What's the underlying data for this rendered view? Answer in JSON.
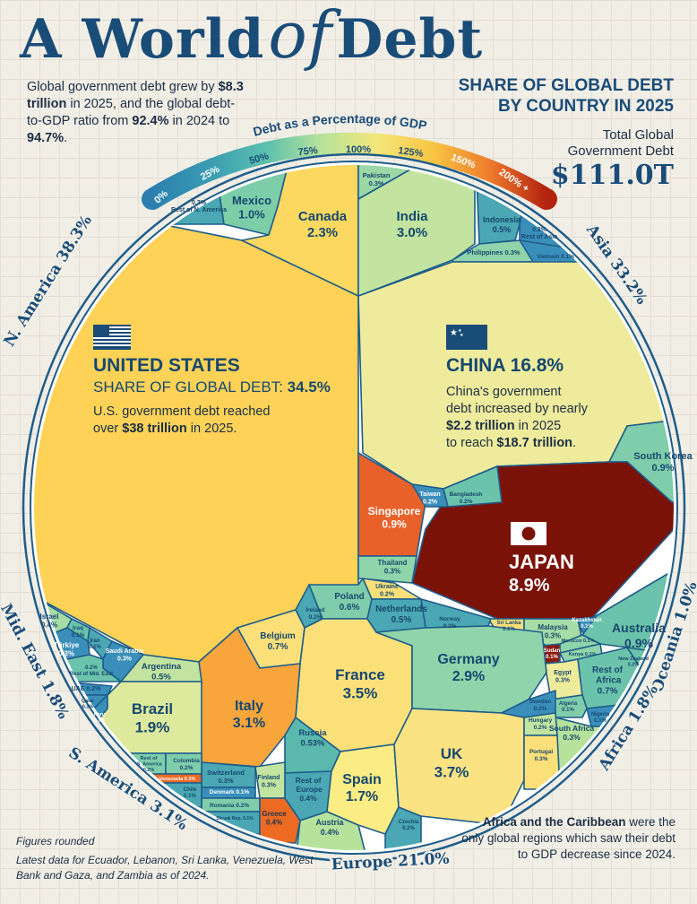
{
  "header": {
    "title_a": "A World",
    "title_of": "of",
    "title_b": "Debt",
    "intro": [
      "Global government debt grew by ",
      "$8.3 trillion",
      " in 2025, and the global debt-to-GDP ratio from ",
      "92.4%",
      " in 2024 to ",
      "94.7%",
      "."
    ],
    "right_title_1": "SHARE OF GLOBAL DEBT",
    "right_title_2": "BY COUNTRY IN 2025",
    "total_label_1": "Total Global",
    "total_label_2": "Government Debt",
    "total_value": "$111.0T"
  },
  "legend": {
    "title": "Debt as a Percentage of GDP",
    "ticks": [
      "0%",
      "25%",
      "50%",
      "75%",
      "100%",
      "125%",
      "150%",
      "200% +"
    ],
    "colors": [
      "#2b7fae",
      "#3a9bb2",
      "#5bbfae",
      "#b6e29c",
      "#f3e77a",
      "#f9c443",
      "#ee7a2c",
      "#b2220f"
    ]
  },
  "highlights": {
    "us": {
      "name": "UNITED STATES",
      "share_label": "SHARE OF GLOBAL DEBT:",
      "share": "34.5%",
      "note_1": "U.S. government debt reached",
      "note_2a": "over ",
      "note_2b": "$38 trillion",
      "note_2c": " in 2025."
    },
    "china": {
      "name": "CHINA",
      "share": "16.8%",
      "note_1": "China's government",
      "note_2": "debt increased by nearly",
      "note_3a": "$2.2 trillion",
      "note_3b": " in 2025",
      "note_4a": "to reach ",
      "note_4b": "$18.7 trillion",
      "note_4c": "."
    },
    "japan": {
      "name": "JAPAN",
      "share": "8.9%"
    }
  },
  "footer": {
    "rounded": "Figures rounded",
    "latest": "Latest data for Ecuador, Lebanon, Sri Lanka, Venezuela, West Bank and Gaza, and Zambia as of 2024.",
    "africa": [
      "Africa",
      " and ",
      "the Caribbean",
      " were the only global regions which saw their debt to GDP decrease since 2024."
    ]
  },
  "chart_data": {
    "type": "voronoi-treemap",
    "title": "Share of Global Debt by Country in 2025",
    "unit": "% of global government debt",
    "color_encoding": "Debt as a Percentage of GDP",
    "regions": [
      {
        "name": "N. America",
        "share": "38.3%"
      },
      {
        "name": "Asia",
        "share": "33.2%"
      },
      {
        "name": "Oceania",
        "share": "1.0%"
      },
      {
        "name": "Africa",
        "share": "1.8%"
      },
      {
        "name": "Europe",
        "share": "21.0%"
      },
      {
        "name": "S. America",
        "share": "3.1%"
      },
      {
        "name": "Mid. East",
        "share": "1.8%"
      }
    ],
    "cells": [
      {
        "name": "United States",
        "value": "34.5%",
        "region": "N. America",
        "color": "#fdd257"
      },
      {
        "name": "Rest of N. America",
        "value": "0.3%",
        "region": "N. America",
        "color": "#4aa7b3"
      },
      {
        "name": "Mexico",
        "value": "1.0%",
        "region": "N. America",
        "color": "#7dcda9"
      },
      {
        "name": "Canada",
        "value": "2.3%",
        "region": "N. America",
        "color": "#fcd860"
      },
      {
        "name": "Pakistan",
        "value": "0.3%",
        "region": "Asia",
        "color": "#9ad8a6"
      },
      {
        "name": "India",
        "value": "3.0%",
        "region": "Asia",
        "color": "#c2e4a0"
      },
      {
        "name": "Indonesia",
        "value": "0.5%",
        "region": "Asia",
        "color": "#4aa7b3"
      },
      {
        "name": "Rest of Asia",
        "value": "0.2%",
        "region": "Asia",
        "color": "#3a8fba"
      },
      {
        "name": "Philippines",
        "value": "0.3%",
        "region": "Asia",
        "color": "#8fd4aa"
      },
      {
        "name": "Vietnam",
        "value": "0.1%",
        "region": "Asia",
        "color": "#3a8fba"
      },
      {
        "name": "China",
        "value": "16.8%",
        "region": "Asia",
        "color": "#eeeb9c"
      },
      {
        "name": "South Korea",
        "value": "0.9%",
        "region": "Asia",
        "color": "#7fcdaa"
      },
      {
        "name": "Japan",
        "value": "8.9%",
        "region": "Asia",
        "color": "#7b1208"
      },
      {
        "name": "Singapore",
        "value": "0.9%",
        "region": "Asia",
        "color": "#e8612a"
      },
      {
        "name": "Taiwan",
        "value": "0.2%",
        "region": "Asia",
        "color": "#3a8fba"
      },
      {
        "name": "Bangladesh",
        "value": "0.2%",
        "region": "Asia",
        "color": "#6cc3ab"
      },
      {
        "name": "Thailand",
        "value": "0.3%",
        "region": "Asia",
        "color": "#8fd4aa"
      },
      {
        "name": "Sri Lanka",
        "value": "0.1%",
        "region": "Asia",
        "color": "#fbe07a"
      },
      {
        "name": "Malaysia",
        "value": "0.3%",
        "region": "Asia",
        "color": "#a6dca5"
      },
      {
        "name": "Kazakhstan",
        "value": "0.1%",
        "region": "Asia",
        "color": "#3a8fba"
      },
      {
        "name": "Australia",
        "value": "0.9%",
        "region": "Oceania",
        "color": "#6cc3ab"
      },
      {
        "name": "New Zealand",
        "value": "0.2%",
        "region": "Oceania",
        "color": "#6cc3ab"
      },
      {
        "name": "Sudan",
        "value": "0.1%",
        "region": "Africa",
        "color": "#8a1a0c"
      },
      {
        "name": "Morocco",
        "value": "0.1%",
        "region": "Africa",
        "color": "#8fd4aa"
      },
      {
        "name": "Kenya",
        "value": "0.1%",
        "region": "Africa",
        "color": "#8fd4aa"
      },
      {
        "name": "Egypt",
        "value": "0.3%",
        "region": "Africa",
        "color": "#eeeb9c"
      },
      {
        "name": "Rest of Africa",
        "value": "0.7%",
        "region": "Africa",
        "color": "#6cc3ab"
      },
      {
        "name": "Algeria",
        "value": "0.1%",
        "region": "Africa",
        "color": "#7fcdaa"
      },
      {
        "name": "Nigeria",
        "value": "0.1%",
        "region": "Africa",
        "color": "#3a8fba"
      },
      {
        "name": "South Africa",
        "value": "0.3%",
        "region": "Africa",
        "color": "#b6e29c"
      },
      {
        "name": "Ukraine",
        "value": "0.2%",
        "region": "Europe",
        "color": "#fbe07a"
      },
      {
        "name": "Poland",
        "value": "0.6%",
        "region": "Europe",
        "color": "#7fcdaa"
      },
      {
        "name": "Ireland",
        "value": "0.2%",
        "region": "Europe",
        "color": "#4aa7b3"
      },
      {
        "name": "Netherlands",
        "value": "0.5%",
        "region": "Europe",
        "color": "#4aa7b3"
      },
      {
        "name": "Norway",
        "value": "0.2%",
        "region": "Europe",
        "color": "#4aa7b3"
      },
      {
        "name": "Belgium",
        "value": "0.7%",
        "region": "Europe",
        "color": "#fbe07a"
      },
      {
        "name": "France",
        "value": "3.5%",
        "region": "Europe",
        "color": "#fbe07a"
      },
      {
        "name": "Germany",
        "value": "2.9%",
        "region": "Europe",
        "color": "#8fd4aa"
      },
      {
        "name": "Italy",
        "value": "3.1%",
        "region": "Europe",
        "color": "#f8a63c"
      },
      {
        "name": "Russia",
        "value": "0.53%",
        "region": "Europe",
        "color": "#5bb8ad"
      },
      {
        "name": "Rest of Europe",
        "value": "0.4%",
        "region": "Europe",
        "color": "#4aa7b3"
      },
      {
        "name": "Finland",
        "value": "0.3%",
        "region": "Europe",
        "color": "#c2e4a0"
      },
      {
        "name": "Switzerland",
        "value": "0.3%",
        "region": "Europe",
        "color": "#4aa7b3"
      },
      {
        "name": "Denmark",
        "value": "0.1%",
        "region": "Europe",
        "color": "#3a8fba"
      },
      {
        "name": "Romania",
        "value": "0.2%",
        "region": "Europe",
        "color": "#7fcdaa"
      },
      {
        "name": "Slovak Rep.",
        "value": "0.1%",
        "region": "Europe",
        "color": "#4aa7b3"
      },
      {
        "name": "Greece",
        "value": "0.4%",
        "region": "Europe",
        "color": "#ec6a22"
      },
      {
        "name": "Austria",
        "value": "0.4%",
        "region": "Europe",
        "color": "#b6e29c"
      },
      {
        "name": "Spain",
        "value": "1.7%",
        "region": "Europe",
        "color": "#fbec84"
      },
      {
        "name": "Czechia",
        "value": "0.2%",
        "region": "Europe",
        "color": "#4aa7b3"
      },
      {
        "name": "UK",
        "value": "3.7%",
        "region": "Europe",
        "color": "#fbe383"
      },
      {
        "name": "Sweden",
        "value": "0.2%",
        "region": "Europe",
        "color": "#3a8fba"
      },
      {
        "name": "Hungary",
        "value": "0.2%",
        "region": "Europe",
        "color": "#c2e4a0"
      },
      {
        "name": "Portugal",
        "value": "0.3%",
        "region": "Europe",
        "color": "#fbe07a"
      },
      {
        "name": "Israel",
        "value": "0.4%",
        "region": "Mid. East",
        "color": "#a6dca5"
      },
      {
        "name": "Iraq",
        "value": "0.1%",
        "region": "Mid. East",
        "color": "#6cc3ab"
      },
      {
        "name": "Iran",
        "value": "0.1%",
        "region": "Mid. East",
        "color": "#4aa7b3"
      },
      {
        "name": "Saudi Arabia",
        "value": "0.3%",
        "region": "Mid. East",
        "color": "#3a8fba"
      },
      {
        "name": "Türkiye",
        "value": "0.3%",
        "region": "Mid. East",
        "color": "#3a8fba"
      },
      {
        "name": "Rest of Mid. East",
        "value": "0.2%",
        "region": "Mid. East",
        "color": "#6cc3ab"
      },
      {
        "name": "UAE",
        "value": "0.2%",
        "region": "Mid. East",
        "color": "#3a8fba"
      },
      {
        "name": "Qatar",
        "value": "0.1%",
        "region": "Mid. East",
        "color": "#3a8fba"
      },
      {
        "name": "Peru",
        "value": "0.1%",
        "region": "S. America",
        "color": "#3a8fba"
      },
      {
        "name": "Argentina",
        "value": "0.5%",
        "region": "S. America",
        "color": "#c2e4a0"
      },
      {
        "name": "Brazil",
        "value": "1.9%",
        "region": "S. America",
        "color": "#dde99c"
      },
      {
        "name": "Rest of S. America",
        "value": "0.2%",
        "region": "S. America",
        "color": "#7fcdaa"
      },
      {
        "name": "Colombia",
        "value": "0.2%",
        "region": "S. America",
        "color": "#7fcdaa"
      },
      {
        "name": "Venezuela",
        "value": "0.1%",
        "region": "S. America",
        "color": "#ec6a22"
      },
      {
        "name": "Chile",
        "value": "0.1%",
        "region": "S. America",
        "color": "#4aa7b3"
      }
    ]
  }
}
